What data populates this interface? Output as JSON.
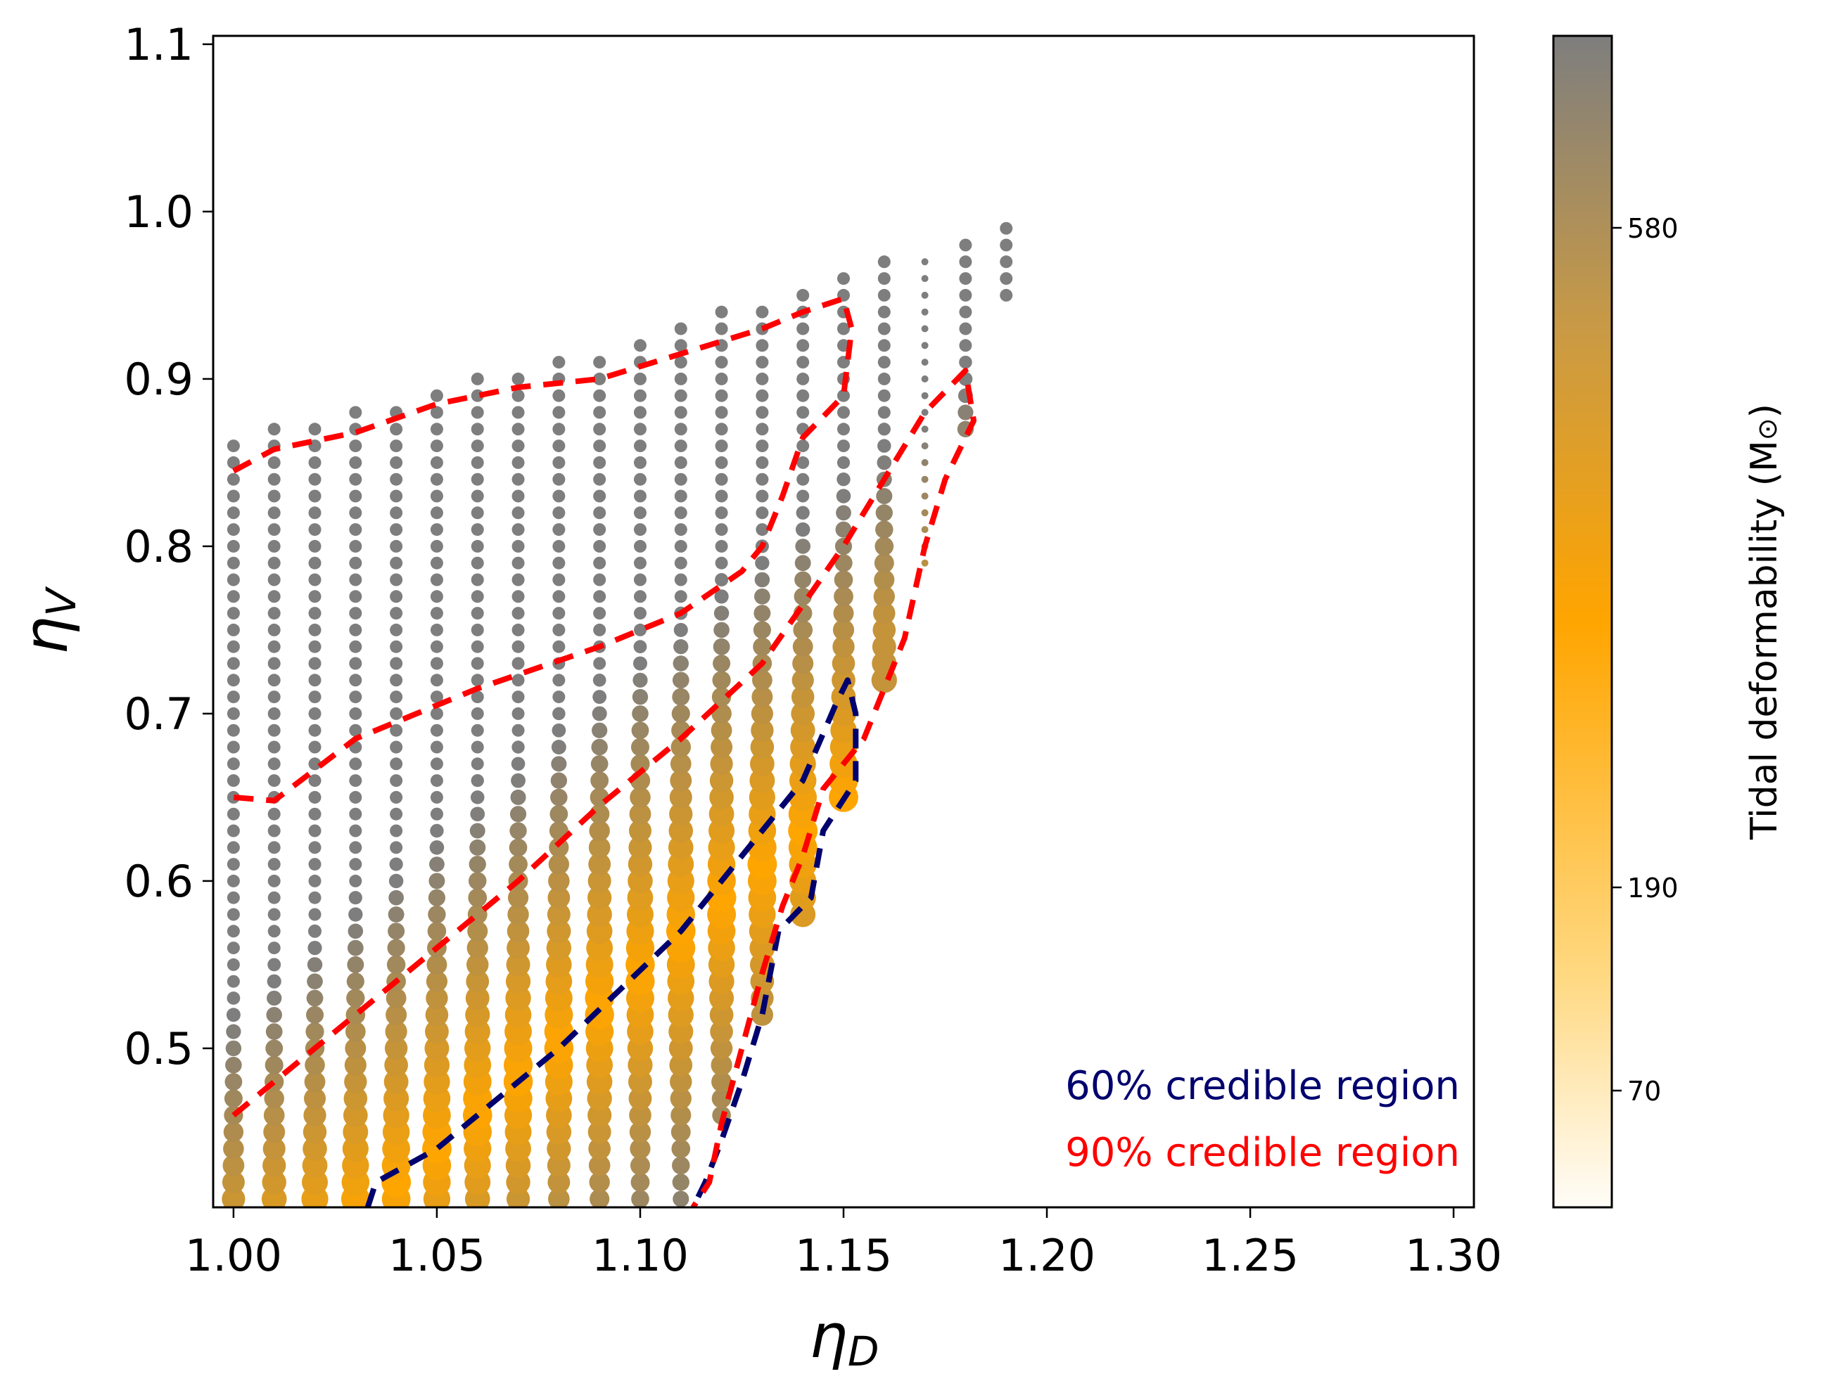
{
  "chart_data": {
    "type": "scatter",
    "title": "",
    "xlabel": "η_D",
    "ylabel": "η_V",
    "xlim": [
      0.995,
      1.305
    ],
    "ylim": [
      0.405,
      1.105
    ],
    "x_ticks": [
      "1.00",
      "1.05",
      "1.10",
      "1.15",
      "1.20",
      "1.25",
      "1.30"
    ],
    "x_tick_values": [
      1.0,
      1.05,
      1.1,
      1.15,
      1.2,
      1.25,
      1.3
    ],
    "y_ticks": [
      "0.5",
      "0.6",
      "0.7",
      "0.8",
      "0.9",
      "1.0",
      "1.1"
    ],
    "y_tick_values": [
      0.5,
      0.6,
      0.7,
      0.8,
      0.9,
      1.0,
      1.1
    ],
    "columns": [
      {
        "x": 1.0,
        "y_min": 0.41,
        "y_max": 0.86
      },
      {
        "x": 1.01,
        "y_min": 0.41,
        "y_max": 0.87
      },
      {
        "x": 1.02,
        "y_min": 0.41,
        "y_max": 0.87
      },
      {
        "x": 1.03,
        "y_min": 0.41,
        "y_max": 0.88
      },
      {
        "x": 1.04,
        "y_min": 0.41,
        "y_max": 0.88
      },
      {
        "x": 1.05,
        "y_min": 0.41,
        "y_max": 0.89
      },
      {
        "x": 1.06,
        "y_min": 0.41,
        "y_max": 0.9
      },
      {
        "x": 1.07,
        "y_min": 0.41,
        "y_max": 0.9
      },
      {
        "x": 1.08,
        "y_min": 0.41,
        "y_max": 0.91
      },
      {
        "x": 1.09,
        "y_min": 0.41,
        "y_max": 0.91
      },
      {
        "x": 1.1,
        "y_min": 0.41,
        "y_max": 0.92
      },
      {
        "x": 1.11,
        "y_min": 0.41,
        "y_max": 0.93
      },
      {
        "x": 1.12,
        "y_min": 0.46,
        "y_max": 0.94
      },
      {
        "x": 1.13,
        "y_min": 0.52,
        "y_max": 0.94
      },
      {
        "x": 1.14,
        "y_min": 0.58,
        "y_max": 0.95
      },
      {
        "x": 1.15,
        "y_min": 0.65,
        "y_max": 0.96
      },
      {
        "x": 1.16,
        "y_min": 0.72,
        "y_max": 0.97
      },
      {
        "x": 1.17,
        "y_min": 0.79,
        "y_max": 0.97
      },
      {
        "x": 1.18,
        "y_min": 0.87,
        "y_max": 0.98
      },
      {
        "x": 1.19,
        "y_min": 0.95,
        "y_max": 0.99
      }
    ],
    "colorbar": {
      "label": "Tidal deformability (M",
      "label_symbol": "⊙",
      "label_close": ")",
      "ticks": [
        "70",
        "190",
        "580"
      ],
      "colormap": [
        "#fffdf8",
        "#ffd880",
        "#ffa500",
        "#c99a45",
        "#7e7e7e"
      ]
    },
    "contours": [
      {
        "name": "60% credible region",
        "color": "#00006e",
        "points": [
          [
            1.033,
            0.405
          ],
          [
            1.035,
            0.42
          ],
          [
            1.05,
            0.44
          ],
          [
            1.065,
            0.47
          ],
          [
            1.08,
            0.5
          ],
          [
            1.095,
            0.535
          ],
          [
            1.11,
            0.57
          ],
          [
            1.125,
            0.615
          ],
          [
            1.14,
            0.66
          ],
          [
            1.148,
            0.705
          ],
          [
            1.151,
            0.72
          ],
          [
            1.153,
            0.7
          ],
          [
            1.153,
            0.66
          ],
          [
            1.145,
            0.63
          ],
          [
            1.142,
            0.59
          ],
          [
            1.134,
            0.57
          ],
          [
            1.13,
            0.52
          ],
          [
            1.125,
            0.48
          ],
          [
            1.12,
            0.445
          ],
          [
            1.116,
            0.42
          ],
          [
            1.113,
            0.405
          ]
        ]
      },
      {
        "name": "90% credible region",
        "color": "#ff0000",
        "points": [
          [
            1.0,
            0.845
          ],
          [
            1.01,
            0.858
          ],
          [
            1.03,
            0.868
          ],
          [
            1.05,
            0.885
          ],
          [
            1.07,
            0.895
          ],
          [
            1.09,
            0.9
          ],
          [
            1.11,
            0.915
          ],
          [
            1.13,
            0.93
          ],
          [
            1.14,
            0.94
          ],
          [
            1.15,
            0.948
          ],
          [
            1.152,
            0.93
          ],
          [
            1.15,
            0.89
          ],
          [
            1.14,
            0.865
          ],
          [
            1.135,
            0.83
          ],
          [
            1.13,
            0.8
          ],
          [
            1.125,
            0.785
          ],
          [
            1.11,
            0.76
          ],
          [
            1.09,
            0.74
          ],
          [
            1.06,
            0.715
          ],
          [
            1.03,
            0.685
          ],
          [
            1.01,
            0.648
          ],
          [
            1.0,
            0.65
          ]
        ]
      },
      {
        "name": "90% credible region",
        "color": "#ff0000",
        "points": [
          [
            1.0,
            0.46
          ],
          [
            1.01,
            0.48
          ],
          [
            1.03,
            0.52
          ],
          [
            1.05,
            0.56
          ],
          [
            1.07,
            0.6
          ],
          [
            1.09,
            0.645
          ],
          [
            1.11,
            0.685
          ],
          [
            1.13,
            0.73
          ],
          [
            1.15,
            0.8
          ],
          [
            1.17,
            0.88
          ],
          [
            1.18,
            0.905
          ],
          [
            1.182,
            0.875
          ],
          [
            1.175,
            0.84
          ],
          [
            1.17,
            0.8
          ],
          [
            1.165,
            0.745
          ],
          [
            1.16,
            0.715
          ],
          [
            1.155,
            0.685
          ],
          [
            1.145,
            0.655
          ],
          [
            1.14,
            0.615
          ],
          [
            1.135,
            0.585
          ],
          [
            1.13,
            0.545
          ],
          [
            1.125,
            0.5
          ],
          [
            1.12,
            0.455
          ],
          [
            1.117,
            0.42
          ],
          [
            1.113,
            0.405
          ]
        ]
      }
    ],
    "legend": [
      {
        "label": "60% credible region",
        "color": "#00006e"
      },
      {
        "label": "90% credible region",
        "color": "#ff0000"
      }
    ],
    "legend_position": "bottom-right"
  }
}
